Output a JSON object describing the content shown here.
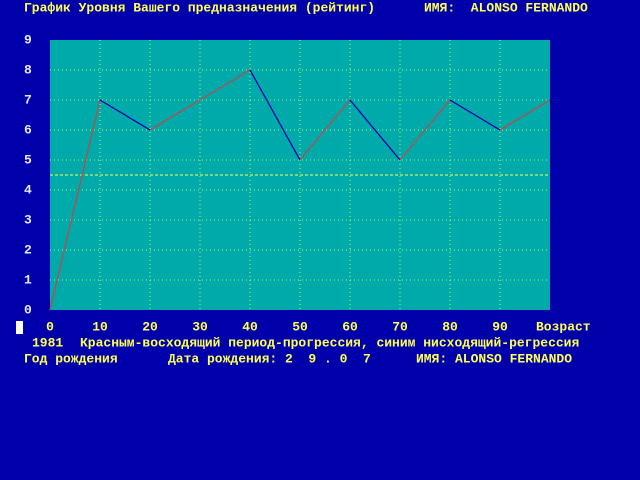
{
  "chart_data": {
    "type": "line",
    "title": "График Уровня Вашего предназначения (рейтинг)",
    "name_label": "ИМЯ:  ALONSO FERNANDO",
    "x": [
      0,
      10,
      20,
      30,
      40,
      50,
      60,
      70,
      80,
      90,
      100
    ],
    "values": [
      0,
      7,
      6,
      7,
      8,
      5,
      7,
      5,
      7,
      6,
      7
    ],
    "rise_color": "#c04848",
    "fall_color": "#0000aa",
    "xlim": [
      0,
      100
    ],
    "xticks": [
      0,
      10,
      20,
      30,
      40,
      50,
      60,
      70,
      80,
      90,
      {
        "value": 100,
        "label": "Возраст"
      }
    ],
    "ylim": [
      0,
      9
    ],
    "yticks": [
      0,
      1,
      2,
      3,
      4,
      5,
      6,
      7,
      8,
      9
    ],
    "reference_line": 4.5,
    "grid": true
  },
  "footer": {
    "year": "1981",
    "legend": "Красным-восходящий период-прогрессия, синим нисходящий-регрессия",
    "birth_year_label": "Год рождения",
    "birth_date": "Дата рождения: 2  9 . 0  7",
    "name": "ИМЯ: ALONSO FERNANDO"
  }
}
